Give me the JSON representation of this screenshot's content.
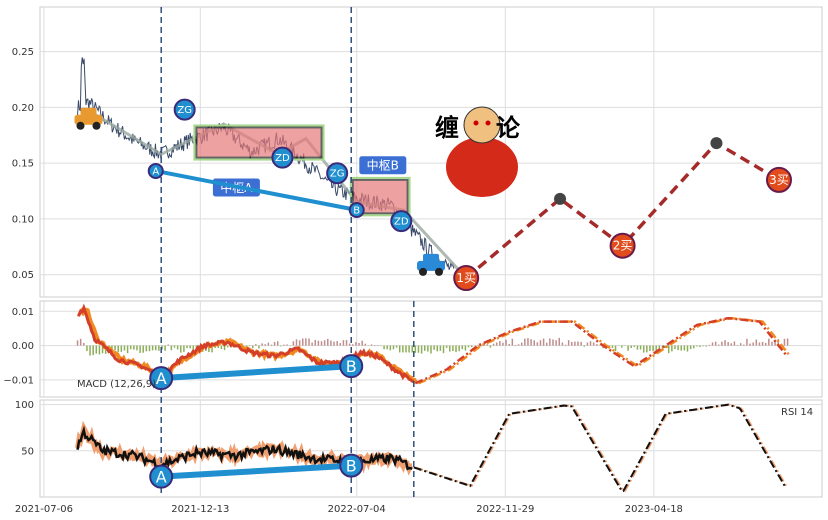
{
  "chart_data": {
    "type": "line",
    "x_axis": {
      "tick_labels": [
        "2021-07-06",
        "2021-12-13",
        "2022-07-04",
        "2022-11-29",
        "2023-04-18"
      ]
    },
    "price_panel": {
      "y_ticks": [
        0.05,
        0.1,
        0.15,
        0.2,
        0.25
      ],
      "ylim": [
        0.03,
        0.29
      ],
      "pivots": [
        {
          "label": "中枢A",
          "x_range": [
            0.2,
            0.36
          ],
          "y_range": [
            0.155,
            0.182
          ]
        },
        {
          "label": "中枢B",
          "x_range": [
            0.4,
            0.47
          ],
          "y_range": [
            0.105,
            0.135
          ]
        }
      ],
      "marker_labels": {
        "a": "A",
        "b": "B",
        "zg": "ZG",
        "zd": "ZD"
      },
      "forecast_points": [
        {
          "x": 0.545,
          "y": 0.047,
          "label": "1买"
        },
        {
          "x": 0.665,
          "y": 0.118,
          "label": ""
        },
        {
          "x": 0.745,
          "y": 0.076,
          "label": "2买"
        },
        {
          "x": 0.865,
          "y": 0.168,
          "label": ""
        },
        {
          "x": 0.945,
          "y": 0.135,
          "label": "3买"
        }
      ],
      "title_text_left": "缠",
      "title_text_right": "论"
    },
    "macd_panel": {
      "label": "MACD (12,26,9)",
      "y_ticks": [
        -0.01,
        0.0,
        0.01
      ],
      "ylim": [
        -0.015,
        0.013
      ],
      "divergence_labels": [
        "A",
        "B"
      ]
    },
    "rsi_panel": {
      "label": "RSI 14",
      "y_ticks": [
        50,
        100
      ],
      "ylim": [
        0,
        105
      ],
      "divergence_labels": [
        "A",
        "B"
      ]
    },
    "colors": {
      "price_line": "#3a4a6a",
      "trend_line": "#1f8fd0",
      "forecast": "#a52a2a",
      "macd_dif": "#d43f2a",
      "macd_dea": "#f08a20",
      "hist_pos": "#b07070",
      "hist_neg": "#6f9a2f",
      "rsi": "#111111",
      "pivot_fill": "#e77a7a",
      "badge": "#1f8fd0"
    }
  }
}
